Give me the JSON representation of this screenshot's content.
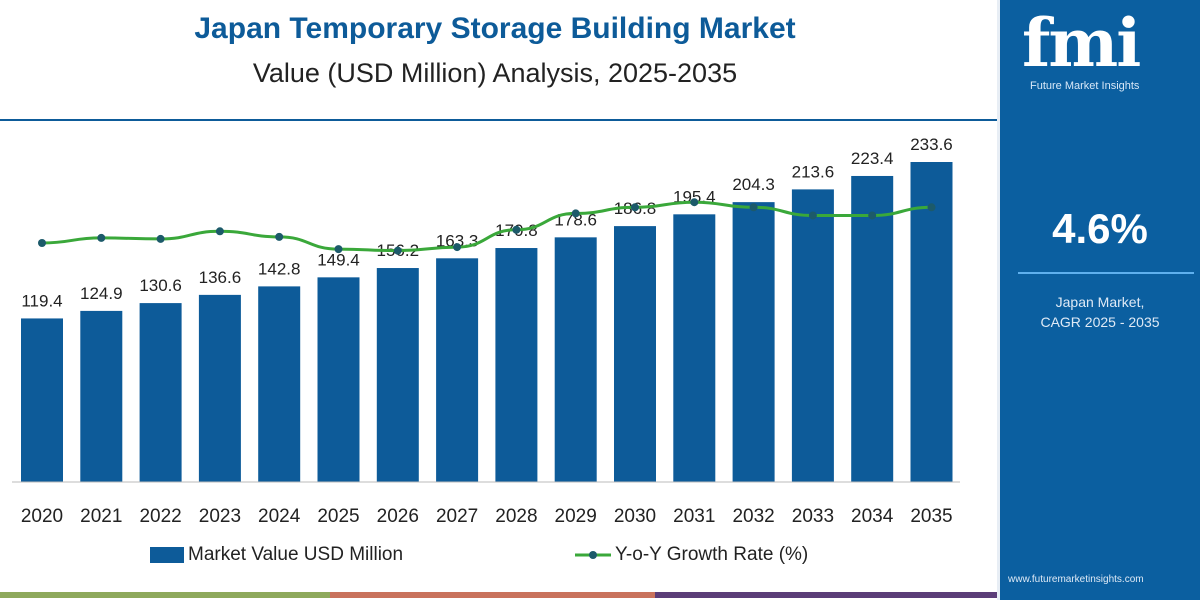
{
  "header": {
    "title": "Japan Temporary Storage Building Market",
    "subtitle": "Value (USD Million) Analysis, 2025-2035"
  },
  "side_panel": {
    "logo_text": "fmi",
    "logo_subtitle": "Future Market Insights",
    "cagr_value": "4.6%",
    "cagr_label_line1": "Japan Market,",
    "cagr_label_line2": "CAGR 2025 - 2035",
    "website": "www.futuremarketinsights.com"
  },
  "colors": {
    "bar": "#0d5b99",
    "line": "#3aa83a",
    "marker": "#1c5a6a",
    "panel": "#0b5fa0",
    "strips": [
      "#8ea95c",
      "#c9725c",
      "#5b3d78"
    ]
  },
  "chart_data": {
    "type": "bar+line",
    "categories": [
      "2020",
      "2021",
      "2022",
      "2023",
      "2024",
      "2025",
      "2026",
      "2027",
      "2028",
      "2029",
      "2030",
      "2031",
      "2032",
      "2033",
      "2034",
      "2035"
    ],
    "series": [
      {
        "name": "Market Value USD Million",
        "type": "bar",
        "values": [
          119.4,
          124.9,
          130.6,
          136.6,
          142.8,
          149.4,
          156.2,
          163.3,
          170.8,
          178.6,
          186.8,
          195.4,
          204.3,
          213.6,
          223.4,
          233.6
        ],
        "data_labels": [
          "119.4",
          "124.9",
          "130.6",
          "136.6",
          "142.8",
          "149.4",
          "156.2",
          "163.3",
          "170.8",
          "178.6",
          "186.8",
          "195.4",
          "204.3",
          "213.6",
          "223.4",
          "233.6"
        ]
      },
      {
        "name": "Y-o-Y Growth Rate (%)",
        "type": "line",
        "axis": "hidden",
        "values": [
          4.45,
          4.55,
          4.53,
          4.68,
          4.57,
          4.33,
          4.3,
          4.37,
          4.71,
          5.03,
          5.15,
          5.25,
          5.15,
          4.99,
          4.99,
          5.15
        ]
      }
    ],
    "ylim": [
      0,
      240
    ],
    "grid": false,
    "legend": "bottom"
  }
}
